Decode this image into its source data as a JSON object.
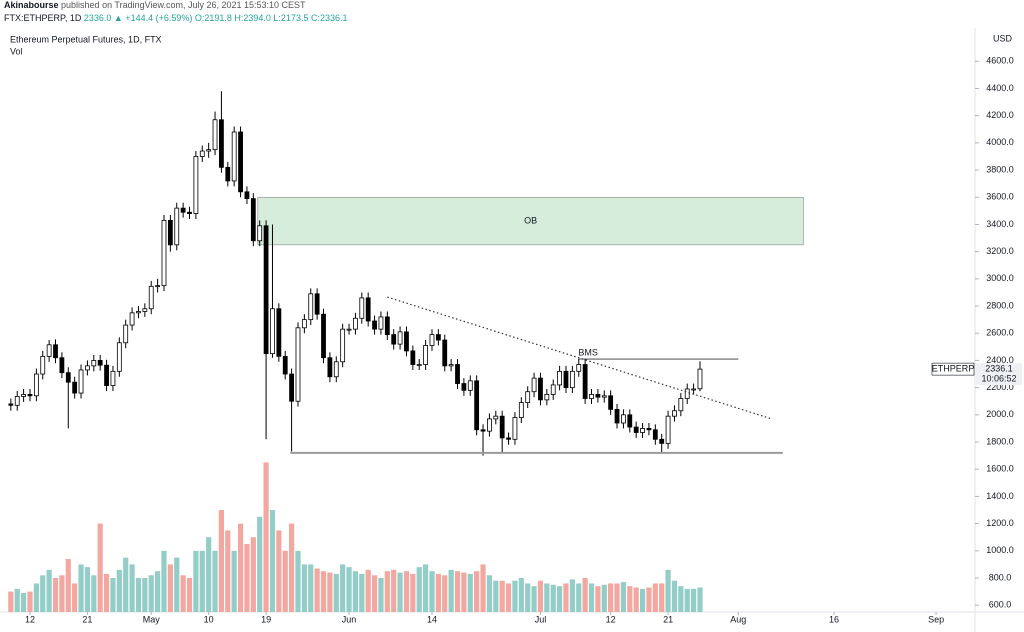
{
  "chart_data": {
    "type": "candlestick",
    "publisher": "Akinabourse",
    "published": "published on TradingView.com, July 26, 2021 15:53:10 CEST",
    "symbol": "FTX:ETHPERP, 1D",
    "quote": "2336.0 ▲ +144.4 (+6.59%) O:2191.8 H:2394.0 L:2173.5 C:2336.1",
    "title": "Ethereum Perpetual Futures, 1D, FTX",
    "subtitle": "Vol",
    "currency": "USD",
    "ticker": "ETHPERP",
    "countdown": "10:06:52",
    "up_color": "#ffffff",
    "down_color": "#000000",
    "volume_up_color": "#93cdc7",
    "volume_down_color": "#f2a7a1",
    "open": [
      2080,
      2070,
      2135,
      2150,
      2140,
      2300,
      2430,
      2515,
      2420,
      2310,
      2240,
      2160,
      2330,
      2360,
      2400,
      2365,
      2215,
      2320,
      2530,
      2660,
      2750,
      2760,
      2780,
      2945,
      2950,
      3430,
      3250,
      3520,
      3490,
      3480,
      3900,
      3940,
      3950,
      4170,
      3820,
      3720,
      4080,
      3640,
      3590,
      3280,
      3390,
      2450,
      2780,
      2430,
      2300,
      2100,
      2640,
      2700,
      2890,
      2740,
      2420,
      2280,
      2390,
      2630,
      2630,
      2710,
      2860,
      2690,
      2630,
      2720,
      2590,
      2520,
      2610,
      2470,
      2370,
      2370,
      2510,
      2590,
      2550,
      2360,
      2370,
      2230,
      2180,
      2250,
      1890,
      1880,
      1970,
      1990,
      1830,
      1820,
      1980,
      2090,
      2170,
      2270,
      2110,
      2150,
      2220,
      2320,
      2200,
      2320,
      2370,
      2120,
      2150,
      2130,
      2140,
      2040,
      1940,
      2000,
      1910,
      1870,
      1900,
      1890,
      1820,
      1790,
      1990,
      2030,
      2120,
      2190,
      2191.8
    ],
    "high": [
      2120,
      2175,
      2190,
      2190,
      2340,
      2470,
      2550,
      2555,
      2460,
      2350,
      2280,
      2370,
      2400,
      2440,
      2440,
      2405,
      2360,
      2570,
      2700,
      2790,
      2800,
      2820,
      2985,
      3000,
      3470,
      3470,
      3560,
      3560,
      3530,
      3940,
      3980,
      4000,
      4230,
      4380,
      3860,
      4120,
      4120,
      3680,
      3630,
      3430,
      3430,
      3400,
      2820,
      2470,
      2340,
      2680,
      2740,
      2930,
      2930,
      2780,
      2460,
      2430,
      2670,
      2670,
      2750,
      2900,
      2900,
      2730,
      2760,
      2760,
      2630,
      2650,
      2650,
      2510,
      2410,
      2550,
      2630,
      2630,
      2590,
      2410,
      2410,
      2270,
      2290,
      2290,
      1930,
      2010,
      2030,
      2030,
      1870,
      2020,
      2130,
      2210,
      2310,
      2310,
      2190,
      2260,
      2360,
      2360,
      2360,
      2410,
      2410,
      2190,
      2190,
      2180,
      2180,
      2080,
      2040,
      2040,
      1950,
      1940,
      1940,
      1930,
      1860,
      2030,
      2070,
      2160,
      2230,
      2230,
      2394
    ],
    "low": [
      2030,
      2030,
      2095,
      2100,
      2100,
      2260,
      2390,
      2380,
      2270,
      1900,
      2120,
      2120,
      2290,
      2320,
      2325,
      2175,
      2175,
      2280,
      2490,
      2620,
      2710,
      2720,
      2740,
      2900,
      2910,
      3200,
      3210,
      3450,
      3440,
      3440,
      3860,
      3890,
      3910,
      3780,
      3680,
      3680,
      3600,
      3550,
      3240,
      3240,
      1820,
      2420,
      2390,
      2260,
      1730,
      2060,
      2600,
      2660,
      2700,
      2380,
      2240,
      2240,
      2350,
      2590,
      2590,
      2670,
      2650,
      2590,
      2590,
      2550,
      2480,
      2480,
      2430,
      2330,
      2330,
      2330,
      2470,
      2510,
      2320,
      2320,
      2190,
      2140,
      2140,
      1850,
      1700,
      1840,
      1930,
      1720,
      1780,
      1780,
      1940,
      2050,
      2130,
      2070,
      2070,
      2110,
      2180,
      2160,
      2160,
      2280,
      2080,
      2080,
      2090,
      2090,
      2000,
      1900,
      1900,
      1870,
      1830,
      1830,
      1850,
      1780,
      1720,
      1750,
      1950,
      1990,
      2080,
      2150,
      2173.5
    ],
    "close": [
      2070,
      2135,
      2150,
      2140,
      2300,
      2430,
      2515,
      2420,
      2310,
      2240,
      2160,
      2330,
      2360,
      2400,
      2365,
      2215,
      2320,
      2530,
      2660,
      2750,
      2760,
      2780,
      2945,
      2950,
      3430,
      3250,
      3520,
      3490,
      3480,
      3900,
      3940,
      3950,
      4170,
      3820,
      3720,
      4080,
      3640,
      3590,
      3280,
      3390,
      2450,
      2780,
      2430,
      2300,
      2100,
      2640,
      2700,
      2890,
      2740,
      2420,
      2280,
      2390,
      2630,
      2630,
      2710,
      2860,
      2690,
      2630,
      2720,
      2590,
      2520,
      2610,
      2470,
      2370,
      2370,
      2510,
      2590,
      2550,
      2360,
      2370,
      2230,
      2180,
      2250,
      1890,
      1880,
      1970,
      1990,
      1830,
      1820,
      1980,
      2090,
      2170,
      2270,
      2110,
      2150,
      2220,
      2320,
      2200,
      2320,
      2370,
      2120,
      2150,
      2130,
      2140,
      2040,
      1940,
      2000,
      1910,
      1870,
      1900,
      1890,
      1820,
      1790,
      1990,
      2030,
      2120,
      2190,
      2190,
      2336.1
    ],
    "volume": [
      700,
      720,
      690,
      700,
      760,
      820,
      860,
      800,
      820,
      940,
      760,
      900,
      880,
      820,
      1200,
      830,
      800,
      860,
      950,
      900,
      800,
      800,
      820,
      850,
      1000,
      900,
      950,
      820,
      800,
      1000,
      1000,
      1100,
      1000,
      1300,
      1150,
      1000,
      1200,
      1050,
      1100,
      1250,
      1650,
      1300,
      1150,
      1000,
      1200,
      1000,
      900,
      900,
      870,
      850,
      840,
      830,
      900,
      880,
      850,
      830,
      860,
      820,
      800,
      850,
      860,
      840,
      850,
      830,
      880,
      900,
      850,
      830,
      820,
      860,
      850,
      840,
      830,
      850,
      900,
      820,
      780,
      780,
      760,
      780,
      800,
      760,
      740,
      780,
      760,
      750,
      740,
      760,
      790,
      760,
      800,
      760,
      740,
      750,
      760,
      760,
      770,
      740,
      730,
      720,
      730,
      760,
      760,
      860,
      780,
      740,
      720,
      720,
      730
    ],
    "xlim": [
      -1.7,
      151.1
    ],
    "ylim": [
      550,
      4830
    ],
    "xticks": [
      {
        "value": 3,
        "label": "12"
      },
      {
        "value": 12,
        "label": "21"
      },
      {
        "value": 22,
        "label": "May"
      },
      {
        "value": 31,
        "label": "10"
      },
      {
        "value": 40,
        "label": "19"
      },
      {
        "value": 53,
        "label": "Jun"
      },
      {
        "value": 66,
        "label": "14"
      },
      {
        "value": 83,
        "label": "Jul"
      },
      {
        "value": 94,
        "label": "12"
      },
      {
        "value": 103,
        "label": "21"
      },
      {
        "value": 114,
        "label": "Aug"
      },
      {
        "value": 129,
        "label": "16"
      },
      {
        "value": 145,
        "label": "Sep"
      }
    ],
    "yticks": [
      {
        "value": 600,
        "label": "600.0"
      },
      {
        "value": 800,
        "label": "800.0"
      },
      {
        "value": 1000,
        "label": "1000.0"
      },
      {
        "value": 1200,
        "label": "1200.0"
      },
      {
        "value": 1400,
        "label": "1400.0"
      },
      {
        "value": 1600,
        "label": "1600.0"
      },
      {
        "value": 1800,
        "label": "1800.0"
      },
      {
        "value": 2000,
        "label": "2000.0"
      },
      {
        "value": 2200,
        "label": "2200.0"
      },
      {
        "value": 2400,
        "label": "2400.0"
      },
      {
        "value": 2600,
        "label": "2600.0"
      },
      {
        "value": 2800,
        "label": "2800.0"
      },
      {
        "value": 3000,
        "label": "3000.0"
      },
      {
        "value": 3200,
        "label": "3200.0"
      },
      {
        "value": 3400,
        "label": "3400.0"
      },
      {
        "value": 3600,
        "label": "3600.0"
      },
      {
        "value": 3800,
        "label": "3800.0"
      },
      {
        "value": 4000,
        "label": "4000.0"
      },
      {
        "value": 4200,
        "label": "4200.0"
      },
      {
        "value": 4400,
        "label": "4400.0"
      },
      {
        "value": 4600,
        "label": "4600.0"
      }
    ],
    "grid": false,
    "annotations": {
      "ob": {
        "label": "OB",
        "x": [
          38.7,
          124.2
        ],
        "y": [
          3600,
          3250
        ],
        "color": "#d6eddc"
      },
      "bms": {
        "label": "BMS",
        "x": [
          88.9,
          114
        ],
        "y": 2410
      },
      "support": {
        "x": [
          43.8,
          121
        ],
        "y": 1720
      },
      "trendline": {
        "x": [
          59,
          119.3
        ],
        "y": [
          2866,
          1969
        ]
      }
    }
  }
}
